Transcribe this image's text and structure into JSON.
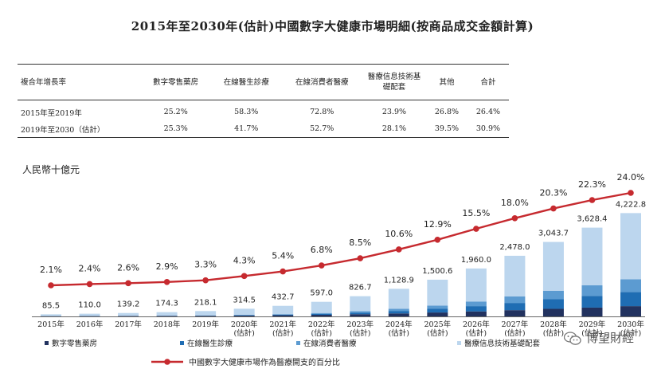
{
  "title": "2015年至2030年(估計)中國數字大健康市場明細(按商品成交金額計算)",
  "growth_table": {
    "headers": [
      "複合年增長率",
      "數字零售藥房",
      "在線醫生診療",
      "在線消費者醫療",
      "醫療信息技術基礎配套",
      "其他",
      "合計"
    ],
    "rows": [
      [
        "2015年至2019年",
        "25.2%",
        "58.3%",
        "72.8%",
        "23.9%",
        "26.8%",
        "26.4%"
      ],
      [
        "2019年至2030（估計）",
        "25.3%",
        "41.7%",
        "52.7%",
        "28.1%",
        "39.5%",
        "30.9%"
      ]
    ]
  },
  "watermark": "博望財經",
  "chart_data": {
    "type": "bar",
    "stacked": true,
    "unit_label": "人民幣十億元",
    "categories": [
      [
        "2015年"
      ],
      [
        "2016年"
      ],
      [
        "2017年"
      ],
      [
        "2018年"
      ],
      [
        "2019年"
      ],
      [
        "2020年",
        "(估計)"
      ],
      [
        "2021年",
        "(估計)"
      ],
      [
        "2022年",
        "(估計)"
      ],
      [
        "2023年",
        "(估計)"
      ],
      [
        "2024年",
        "(估計)"
      ],
      [
        "2025年",
        "(估計)"
      ],
      [
        "2026年",
        "(估計)"
      ],
      [
        "2027年",
        "(估計)"
      ],
      [
        "2028年",
        "(估計)"
      ],
      [
        "2029年",
        "(估計)"
      ],
      [
        "2030年",
        "(估計)"
      ]
    ],
    "totals": [
      85.5,
      110.0,
      139.2,
      174.3,
      218.1,
      314.5,
      432.7,
      597.0,
      826.7,
      1128.9,
      1500.6,
      1960.0,
      2478.0,
      3043.7,
      3628.4,
      4222.8
    ],
    "total_labels": [
      "85.5",
      "110.0",
      "139.2",
      "174.3",
      "218.1",
      "314.5",
      "432.7",
      "597.0",
      "826.7",
      "1,128.9",
      "1,500.6",
      "1,960.0",
      "2,478.0",
      "3,043.7",
      "3,628.4",
      "4,222.8"
    ],
    "series": [
      {
        "name": "數字零售藥房",
        "color": "#22325f",
        "values": [
          10,
          12,
          15,
          19,
          25,
          35,
          48,
          65,
          90,
          122,
          160,
          205,
          255,
          310,
          360,
          420
        ]
      },
      {
        "name": "在線醫生診療",
        "color": "#1f6db3",
        "values": [
          2,
          3,
          4,
          6,
          9,
          16,
          26,
          42,
          66,
          102,
          150,
          215,
          295,
          390,
          480,
          580
        ]
      },
      {
        "name": "在線消費者醫療",
        "color": "#5c9bd1",
        "values": [
          1,
          2,
          3,
          4,
          6,
          12,
          20,
          33,
          55,
          88,
          132,
          190,
          265,
          350,
          430,
          520
        ]
      },
      {
        "name": "醫療信息技術基礎配套",
        "color": "#bcd6ee",
        "values": [
          72.5,
          93,
          117.2,
          145.3,
          178.1,
          251.5,
          338.7,
          457,
          615.7,
          816.9,
          1058.6,
          1350,
          1663,
          1993.7,
          2358.4,
          2702.8
        ]
      }
    ],
    "line_series": {
      "name": "中國數字大健康市場作為醫療開支的百分比",
      "color": "#c62a2f",
      "values": [
        2.1,
        2.4,
        2.6,
        2.9,
        3.3,
        4.3,
        5.4,
        6.8,
        8.5,
        10.6,
        12.9,
        15.5,
        18.0,
        20.3,
        22.3,
        24.0
      ],
      "labels": [
        "2.1%",
        "2.4%",
        "2.6%",
        "2.9%",
        "3.3%",
        "4.3%",
        "5.4%",
        "6.8%",
        "8.5%",
        "10.6%",
        "12.9%",
        "15.5%",
        "18.0%",
        "20.3%",
        "22.3%",
        "24.0%"
      ]
    },
    "legend_position": "bottom",
    "grid": false
  }
}
